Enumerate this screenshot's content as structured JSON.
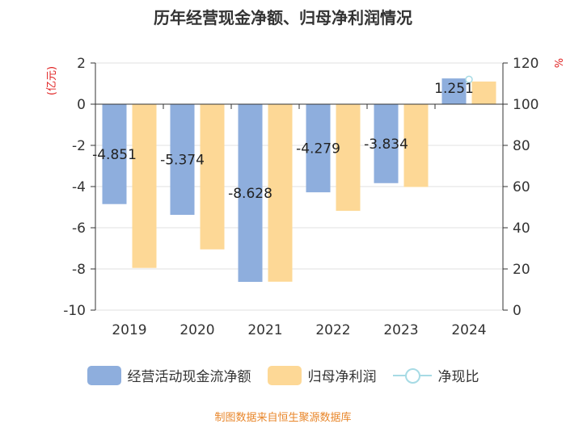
{
  "title": "历年经营现金净额、归母净利润情况",
  "footer": "制图数据来自恒生聚源数据库",
  "colors": {
    "cash_flow": "#8eaedd",
    "net_profit": "#fdd896",
    "ratio": "#a7dbe5",
    "axis": "#333333",
    "axis_unit": "#e02020",
    "grid": "#e0e0e0"
  },
  "chart_data": {
    "type": "bar",
    "title": "历年经营现金净额、归母净利润情况",
    "categories": [
      "2019",
      "2020",
      "2021",
      "2022",
      "2023",
      "2024"
    ],
    "left_axis": {
      "unit": "(亿元)",
      "min": -10,
      "max": 2,
      "ticks": [
        "-10",
        "-8",
        "-6",
        "-4",
        "-2",
        "0",
        "2"
      ]
    },
    "right_axis": {
      "unit": "%",
      "min": 0,
      "max": 120,
      "ticks": [
        "0",
        "20",
        "40",
        "60",
        "80",
        "100",
        "120"
      ]
    },
    "series": [
      {
        "name": "经营活动现金流净额",
        "type": "bar",
        "axis": "left",
        "values": [
          -4.851,
          -5.374,
          -8.628,
          -4.279,
          -3.834,
          1.251
        ],
        "labels": [
          "-4.851",
          "-5.374",
          "-8.628",
          "-4.279",
          "-3.834",
          "1.251"
        ]
      },
      {
        "name": "归母净利润",
        "type": "bar",
        "axis": "left",
        "values": [
          -7.95,
          -7.05,
          -8.62,
          -5.18,
          -4.02,
          1.1
        ]
      },
      {
        "name": "净现比",
        "type": "line",
        "axis": "right",
        "values": [
          null,
          null,
          null,
          null,
          null,
          112
        ]
      }
    ]
  }
}
